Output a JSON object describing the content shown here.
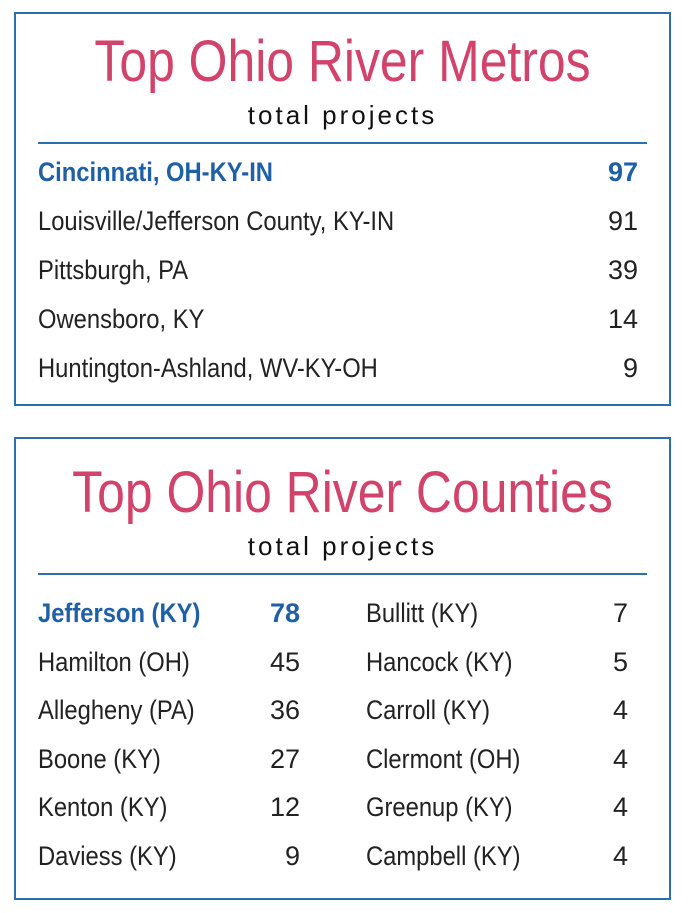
{
  "chart_data": [
    {
      "type": "table",
      "title": "Top Ohio River Metros",
      "subtitle": "total projects",
      "rows": [
        {
          "name": "Cincinnati, OH-KY-IN",
          "value": 97,
          "value_text": "97",
          "highlight": true
        },
        {
          "name": "Louisville/Jefferson County, KY-IN",
          "value": 91,
          "value_text": "91",
          "highlight": false
        },
        {
          "name": "Pittsburgh, PA",
          "value": 39,
          "value_text": "39",
          "highlight": false
        },
        {
          "name": "Owensboro, KY",
          "value": 14,
          "value_text": "14",
          "highlight": false
        },
        {
          "name": "Huntington-Ashland, WV-KY-OH",
          "value": 9,
          "value_text": "9",
          "highlight": false
        }
      ]
    },
    {
      "type": "table",
      "title": "Top Ohio River Counties",
      "subtitle": "total projects",
      "columns": [
        [
          {
            "name": "Jefferson (KY)",
            "value": 78,
            "value_text": "78",
            "highlight": true
          },
          {
            "name": "Hamilton (OH)",
            "value": 45,
            "value_text": "45",
            "highlight": false
          },
          {
            "name": "Allegheny (PA)",
            "value": 36,
            "value_text": "36",
            "highlight": false
          },
          {
            "name": "Boone (KY)",
            "value": 27,
            "value_text": "27",
            "highlight": false
          },
          {
            "name": "Kenton (KY)",
            "value": 12,
            "value_text": "12",
            "highlight": false
          },
          {
            "name": "Daviess (KY)",
            "value": 9,
            "value_text": "9",
            "highlight": false
          }
        ],
        [
          {
            "name": "Bullitt (KY)",
            "value": 7,
            "value_text": "7",
            "highlight": false
          },
          {
            "name": "Hancock (KY)",
            "value": 5,
            "value_text": "5",
            "highlight": false
          },
          {
            "name": "Carroll (KY)",
            "value": 4,
            "value_text": "4",
            "highlight": false
          },
          {
            "name": "Clermont (OH)",
            "value": 4,
            "value_text": "4",
            "highlight": false
          },
          {
            "name": "Greenup (KY)",
            "value": 4,
            "value_text": "4",
            "highlight": false
          },
          {
            "name": "Campbell (KY)",
            "value": 4,
            "value_text": "4",
            "highlight": false
          }
        ]
      ]
    }
  ],
  "colors": {
    "title": "#d2436b",
    "accent": "#1f5fa5",
    "border": "#2a6fb0",
    "text": "#222222"
  }
}
